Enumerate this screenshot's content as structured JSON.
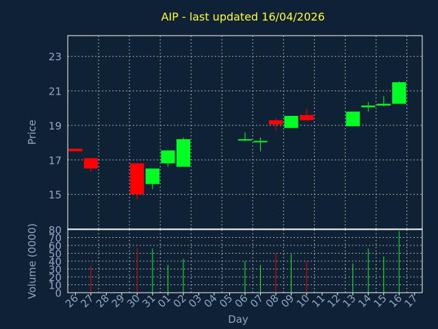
{
  "colors": {
    "background": "#0f2135",
    "axis": "#ffffff",
    "grid": "#b0b0b0",
    "label": "#8fa8c8",
    "title": "#ffff33",
    "up": "#00ff22",
    "down": "#ff0000"
  },
  "chart_data": [
    {
      "type": "candlestick",
      "title": "AIP - last updated 16/04/2026",
      "ylabel": "Price",
      "ylim": [
        13,
        24.2
      ],
      "yticks": [
        15,
        17,
        19,
        21,
        23
      ],
      "grid": true,
      "categories": [
        "26",
        "27",
        "28",
        "29",
        "30",
        "31",
        "01",
        "02",
        "03",
        "04",
        "05",
        "06",
        "07",
        "08",
        "09",
        "10",
        "11",
        "12",
        "13",
        "14",
        "15",
        "16",
        "17"
      ],
      "candles": [
        {
          "x": "26",
          "open": 17.65,
          "close": 17.5,
          "high": 17.65,
          "low": 17.5
        },
        {
          "x": "27",
          "open": 17.1,
          "close": 16.5,
          "high": 17.1,
          "low": 16.3
        },
        {
          "x": "30",
          "open": 16.8,
          "close": 15.0,
          "high": 16.8,
          "low": 14.7
        },
        {
          "x": "31",
          "open": 15.6,
          "close": 16.5,
          "high": 16.5,
          "low": 15.3
        },
        {
          "x": "01",
          "open": 16.8,
          "close": 17.55,
          "high": 17.55,
          "low": 16.6
        },
        {
          "x": "02",
          "open": 16.6,
          "close": 18.2,
          "high": 18.3,
          "low": 16.6
        },
        {
          "x": "06",
          "open": 18.2,
          "close": 18.2,
          "high": 18.6,
          "low": 18.1
        },
        {
          "x": "07",
          "open": 18.1,
          "close": 18.1,
          "high": 18.3,
          "low": 17.5
        },
        {
          "x": "08",
          "open": 19.3,
          "close": 19.05,
          "high": 19.4,
          "low": 18.7
        },
        {
          "x": "09",
          "open": 18.85,
          "close": 19.55,
          "high": 19.55,
          "low": 18.85
        },
        {
          "x": "10",
          "open": 19.6,
          "close": 19.3,
          "high": 19.95,
          "low": 19.25
        },
        {
          "x": "13",
          "open": 18.95,
          "close": 19.8,
          "high": 19.8,
          "low": 18.95
        },
        {
          "x": "14",
          "open": 20.05,
          "close": 20.15,
          "high": 20.35,
          "low": 19.8
        },
        {
          "x": "15",
          "open": 20.15,
          "close": 20.25,
          "high": 20.7,
          "low": 20.1
        },
        {
          "x": "16",
          "open": 20.25,
          "close": 21.5,
          "high": 21.55,
          "low": 20.25
        }
      ]
    },
    {
      "type": "bar",
      "xlabel": "Day",
      "ylabel": "Volume (0000)",
      "ylim": [
        0,
        80
      ],
      "yticks": [
        0,
        10,
        20,
        30,
        40,
        50,
        60,
        70,
        80
      ],
      "grid": true,
      "categories": [
        "26",
        "27",
        "28",
        "29",
        "30",
        "31",
        "01",
        "02",
        "03",
        "04",
        "05",
        "06",
        "07",
        "08",
        "09",
        "10",
        "11",
        "12",
        "13",
        "14",
        "15",
        "16",
        "17"
      ],
      "bars": [
        {
          "x": "27",
          "value": 34,
          "direction": "down"
        },
        {
          "x": "30",
          "value": 57,
          "direction": "down"
        },
        {
          "x": "31",
          "value": 56,
          "direction": "up"
        },
        {
          "x": "01",
          "value": 35,
          "direction": "up"
        },
        {
          "x": "02",
          "value": 43,
          "direction": "up"
        },
        {
          "x": "06",
          "value": 40,
          "direction": "up"
        },
        {
          "x": "07",
          "value": 35,
          "direction": "up"
        },
        {
          "x": "08",
          "value": 50,
          "direction": "down"
        },
        {
          "x": "09",
          "value": 49,
          "direction": "up"
        },
        {
          "x": "10",
          "value": 40,
          "direction": "down"
        },
        {
          "x": "13",
          "value": 37,
          "direction": "up"
        },
        {
          "x": "14",
          "value": 56,
          "direction": "up"
        },
        {
          "x": "15",
          "value": 46,
          "direction": "up"
        },
        {
          "x": "16",
          "value": 78,
          "direction": "up"
        }
      ]
    }
  ]
}
